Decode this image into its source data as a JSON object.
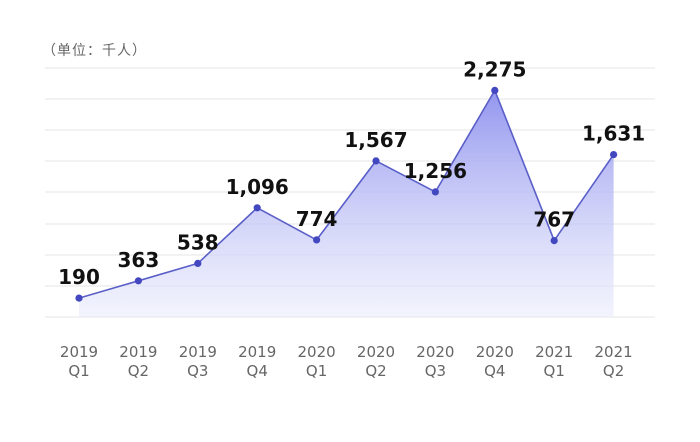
{
  "unit_note": "（单位：千人）",
  "chart_data": {
    "type": "area",
    "title": "",
    "xlabel": "",
    "ylabel": "",
    "categories": [
      {
        "year": "2019",
        "quarter": "Q1"
      },
      {
        "year": "2019",
        "quarter": "Q2"
      },
      {
        "year": "2019",
        "quarter": "Q3"
      },
      {
        "year": "2019",
        "quarter": "Q4"
      },
      {
        "year": "2020",
        "quarter": "Q1"
      },
      {
        "year": "2020",
        "quarter": "Q2"
      },
      {
        "year": "2020",
        "quarter": "Q3"
      },
      {
        "year": "2020",
        "quarter": "Q4"
      },
      {
        "year": "2021",
        "quarter": "Q1"
      },
      {
        "year": "2021",
        "quarter": "Q2"
      }
    ],
    "values": [
      190,
      363,
      538,
      1096,
      774,
      1567,
      1256,
      2275,
      767,
      1631
    ],
    "value_labels": [
      "190",
      "363",
      "538",
      "1,096",
      "774",
      "1,567",
      "1,256",
      "2,275",
      "767",
      "1,631"
    ],
    "ylim": [
      0,
      2500
    ],
    "grid": true,
    "legend": "none",
    "colors": {
      "line": "#5a5fc8",
      "point": "#4448c0",
      "fill_top": "#8d90ee",
      "fill_bottom": "#e8eafc",
      "grid": "#e6e6e6"
    }
  }
}
